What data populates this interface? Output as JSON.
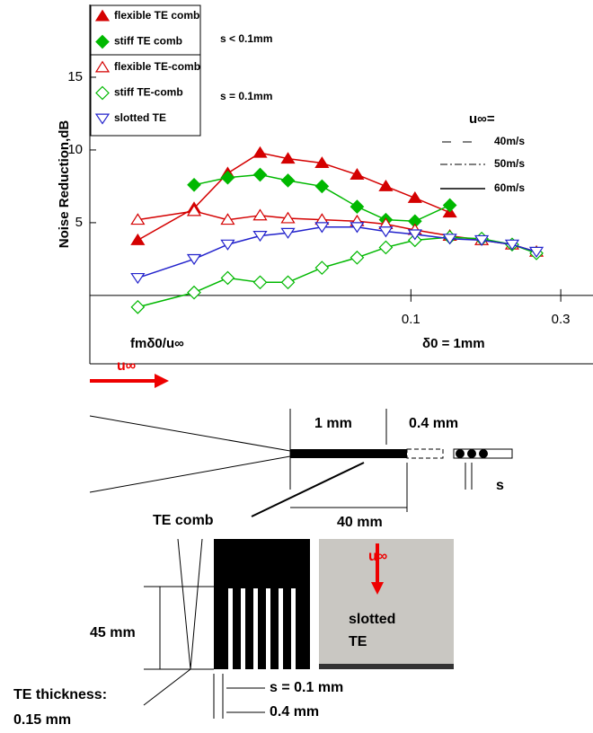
{
  "chart_data": {
    "type": "line",
    "log_x": true,
    "ylabel": "Noise Reduction,dB",
    "xlim": [
      0.0095,
      0.38
    ],
    "ylim": [
      -4.7,
      20
    ],
    "xticks": [
      0.1,
      0.3
    ],
    "yticks": [
      5,
      10,
      15
    ],
    "annotations": [
      "s < 0.1mm",
      "s = 0.1mm",
      "u∞=",
      "40m/s",
      "50m/s",
      "60m/s",
      "fmδ0/u∞",
      "δ0 = 1mm"
    ],
    "series": [
      {
        "name": "flexible TE comb",
        "color": "#d40000",
        "marker": "triangle",
        "filled": true,
        "x": [
          0.0135,
          0.0204,
          0.0261,
          0.0331,
          0.0406,
          0.0521,
          0.0674,
          0.0832,
          0.103,
          0.133
        ],
        "values": [
          3.8,
          6.0,
          8.4,
          9.8,
          9.4,
          9.1,
          8.3,
          7.5,
          6.7,
          5.7
        ]
      },
      {
        "name": "stiff TE comb",
        "color": "#00b800",
        "marker": "diamond",
        "filled": true,
        "x": [
          0.0204,
          0.0261,
          0.0331,
          0.0406,
          0.0521,
          0.0674,
          0.0832,
          0.103,
          0.133
        ],
        "values": [
          7.6,
          8.1,
          8.3,
          7.9,
          7.5,
          6.1,
          5.2,
          5.1,
          6.2
        ]
      },
      {
        "name": "flexible TE-comb",
        "color": "#d40000",
        "marker": "triangle",
        "filled": false,
        "x": [
          0.0135,
          0.0204,
          0.0261,
          0.0331,
          0.0406,
          0.0521,
          0.0674,
          0.0832,
          0.103,
          0.133,
          0.168,
          0.21,
          0.251
        ],
        "values": [
          5.2,
          5.8,
          5.2,
          5.5,
          5.3,
          5.2,
          5.1,
          4.9,
          4.5,
          4.1,
          3.8,
          3.5,
          3.0
        ]
      },
      {
        "name": "stiff TE-comb",
        "color": "#00b800",
        "marker": "diamond",
        "filled": false,
        "x": [
          0.0135,
          0.0204,
          0.0261,
          0.0331,
          0.0406,
          0.0521,
          0.0674,
          0.0832,
          0.103,
          0.133,
          0.168,
          0.21,
          0.251
        ],
        "values": [
          -0.8,
          0.2,
          1.2,
          0.9,
          0.9,
          1.9,
          2.6,
          3.3,
          3.8,
          4.0,
          3.9,
          3.5,
          2.9
        ]
      },
      {
        "name": "slotted TE",
        "color": "#2222cc",
        "marker": "triangle-down",
        "filled": false,
        "x": [
          0.0135,
          0.0204,
          0.0261,
          0.0331,
          0.0406,
          0.0521,
          0.0674,
          0.0832,
          0.103,
          0.133,
          0.168,
          0.21,
          0.251
        ],
        "values": [
          1.2,
          2.5,
          3.5,
          4.1,
          4.3,
          4.7,
          4.7,
          4.4,
          4.2,
          3.9,
          3.8,
          3.5,
          3.0
        ]
      }
    ]
  },
  "diagram": {
    "labels": [
      "u∞",
      "1 mm",
      "0.4 mm",
      "s",
      "TE comb",
      "40 mm",
      "45 mm",
      "u∞",
      "slotted",
      "TE",
      "s = 0.1 mm",
      "0.4 mm",
      "TE thickness:",
      "0.15 mm"
    ]
  }
}
